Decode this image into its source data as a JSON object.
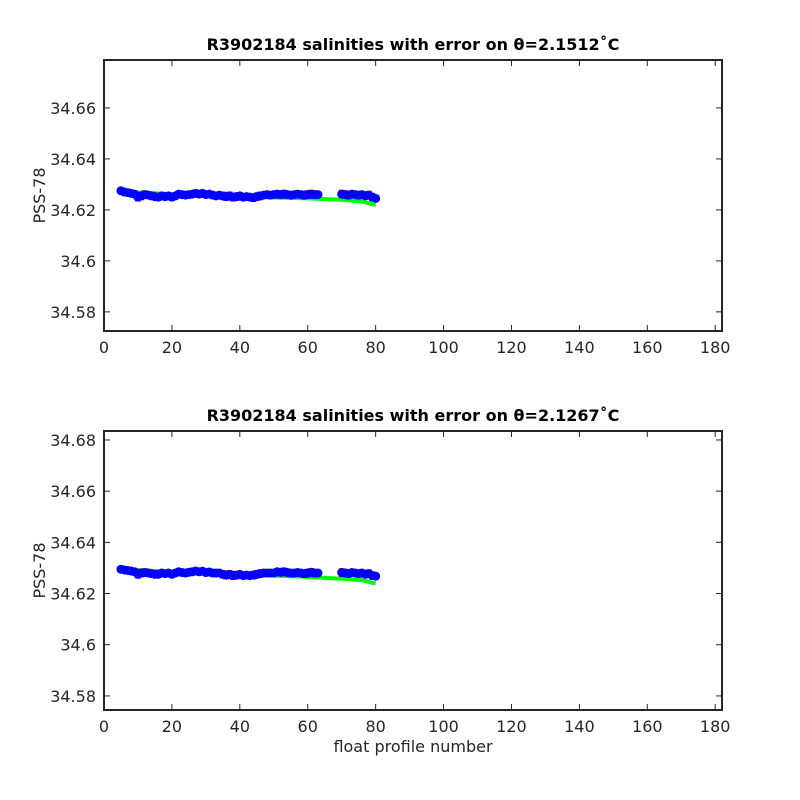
{
  "chart_data": [
    {
      "type": "scatter",
      "title": "R3902184 salinities with error on θ=2.1512˚C",
      "ylabel": "PSS-78",
      "xlim": [
        0,
        182
      ],
      "xticks": [
        0,
        20,
        40,
        60,
        80,
        100,
        120,
        140,
        160,
        180
      ],
      "ylim": [
        34.5725,
        34.6788
      ],
      "yticks": [
        34.58,
        34.6,
        34.62,
        34.64,
        34.66
      ],
      "series": [
        {
          "color": "#00ff00",
          "line": true,
          "x": [
            5,
            20,
            40,
            60,
            70,
            76,
            79,
            80
          ],
          "values": [
            34.6272,
            34.6262,
            34.6252,
            34.6245,
            34.624,
            34.6233,
            34.6222,
            34.622
          ]
        },
        {
          "color": "#0000ff",
          "errcolor": "#ff0000",
          "x": [
            5,
            6,
            7,
            8,
            9,
            10,
            11,
            12,
            13,
            14,
            15,
            16,
            17,
            18,
            19,
            20,
            21,
            22,
            23,
            24,
            25,
            26,
            27,
            28,
            29,
            30,
            31,
            32,
            33,
            34,
            35,
            36,
            37,
            38,
            39,
            40,
            41,
            42,
            43,
            44,
            45,
            46,
            47,
            48,
            49,
            50,
            51,
            52,
            53,
            54,
            55,
            56,
            57,
            58,
            59,
            60,
            61,
            62,
            63,
            70,
            71,
            72,
            73,
            74,
            75,
            76,
            77,
            78,
            79,
            80
          ],
          "values": [
            34.6275,
            34.627,
            34.6268,
            34.6265,
            34.6262,
            34.625,
            34.6255,
            34.626,
            34.6258,
            34.6255,
            34.6252,
            34.625,
            34.6255,
            34.6252,
            34.6255,
            34.625,
            34.6255,
            34.6262,
            34.626,
            34.6258,
            34.626,
            34.6262,
            34.6265,
            34.6262,
            34.6265,
            34.626,
            34.6262,
            34.6258,
            34.6255,
            34.6258,
            34.6255,
            34.6252,
            34.6255,
            34.625,
            34.6252,
            34.6255,
            34.625,
            34.6252,
            34.625,
            34.6248,
            34.6252,
            34.6255,
            34.6258,
            34.626,
            34.6258,
            34.626,
            34.6262,
            34.626,
            34.6262,
            34.626,
            34.6258,
            34.626,
            34.6262,
            34.626,
            34.6258,
            34.626,
            34.6262,
            34.626,
            34.626,
            34.6262,
            34.626,
            34.6258,
            34.6262,
            34.626,
            34.6258,
            34.626,
            34.6255,
            34.6258,
            34.625,
            34.6245
          ],
          "errors": [
            0.0012,
            0.0012,
            0.0012,
            0.0012,
            0.0012,
            0.0015,
            0.0015,
            0.0015,
            0.0012,
            0.0012,
            0.0012,
            0.0012,
            0.0012,
            0.0012,
            0.0012,
            0.0012,
            0.0012,
            0.0012,
            0.0012,
            0.0012,
            0.0012,
            0.0012,
            0.0012,
            0.0012,
            0.0012,
            0.0012,
            0.0012,
            0.0012,
            0.0012,
            0.0012,
            0.0015,
            0.0015,
            0.0015,
            0.0015,
            0.0015,
            0.0012,
            0.0012,
            0.0012,
            0.0012,
            0.0015,
            0.0015,
            0.0015,
            0.0012,
            0.0012,
            0.0012,
            0.0012,
            0.0012,
            0.0015,
            0.0015,
            0.0012,
            0.0012,
            0.0012,
            0.0012,
            0.0012,
            0.0015,
            0.0015,
            0.0015,
            0.0015,
            0.0012,
            0.0015,
            0.0015,
            0.0015,
            0.0012,
            0.0012,
            0.0015,
            0.0012,
            0.0012,
            0.0015,
            0.0015,
            0.0012
          ]
        }
      ]
    },
    {
      "type": "scatter",
      "title": "R3902184 salinities with error on θ=2.1267˚C",
      "ylabel": "PSS-78",
      "xlabel": "float profile number",
      "xlim": [
        0,
        182
      ],
      "xticks": [
        0,
        20,
        40,
        60,
        80,
        100,
        120,
        140,
        160,
        180
      ],
      "ylim": [
        34.5745,
        34.6835
      ],
      "yticks": [
        34.58,
        34.6,
        34.62,
        34.64,
        34.66,
        34.68
      ],
      "series": [
        {
          "color": "#00ff00",
          "line": true,
          "x": [
            5,
            20,
            40,
            60,
            70,
            76,
            79,
            80
          ],
          "values": [
            34.6295,
            34.6285,
            34.6275,
            34.6265,
            34.6258,
            34.6252,
            34.6242,
            34.624
          ]
        },
        {
          "color": "#0000ff",
          "errcolor": "#ff0000",
          "x": [
            5,
            6,
            7,
            8,
            9,
            10,
            11,
            12,
            13,
            14,
            15,
            16,
            17,
            18,
            19,
            20,
            21,
            22,
            23,
            24,
            25,
            26,
            27,
            28,
            29,
            30,
            31,
            32,
            33,
            34,
            35,
            36,
            37,
            38,
            39,
            40,
            41,
            42,
            43,
            44,
            45,
            46,
            47,
            48,
            49,
            50,
            51,
            52,
            53,
            54,
            55,
            56,
            57,
            58,
            59,
            60,
            61,
            62,
            63,
            70,
            71,
            72,
            73,
            74,
            75,
            76,
            77,
            78,
            79,
            80
          ],
          "values": [
            34.6295,
            34.6292,
            34.629,
            34.6288,
            34.6285,
            34.6275,
            34.628,
            34.6282,
            34.628,
            34.6278,
            34.6275,
            34.6275,
            34.628,
            34.6278,
            34.628,
            34.6275,
            34.628,
            34.6285,
            34.6282,
            34.628,
            34.6283,
            34.6285,
            34.6288,
            34.6285,
            34.6287,
            34.6282,
            34.6284,
            34.628,
            34.628,
            34.628,
            34.6275,
            34.6272,
            34.6275,
            34.627,
            34.6272,
            34.6275,
            34.627,
            34.6272,
            34.627,
            34.6272,
            34.6275,
            34.6278,
            34.628,
            34.628,
            34.628,
            34.628,
            34.6285,
            34.6283,
            34.6285,
            34.6282,
            34.628,
            34.628,
            34.6282,
            34.628,
            34.6278,
            34.628,
            34.6283,
            34.628,
            34.628,
            34.6282,
            34.628,
            34.6278,
            34.6282,
            34.628,
            34.6278,
            34.628,
            34.6275,
            34.6278,
            34.627,
            34.6268
          ],
          "errors": [
            0.0012,
            0.0012,
            0.0012,
            0.0012,
            0.0012,
            0.0015,
            0.0015,
            0.0015,
            0.0012,
            0.0012,
            0.0012,
            0.0012,
            0.0012,
            0.0012,
            0.0012,
            0.0012,
            0.0012,
            0.0012,
            0.0012,
            0.0012,
            0.0012,
            0.0012,
            0.0012,
            0.0012,
            0.0012,
            0.0012,
            0.0012,
            0.0012,
            0.0012,
            0.0012,
            0.0015,
            0.0015,
            0.0015,
            0.0015,
            0.0015,
            0.0012,
            0.0012,
            0.0012,
            0.0012,
            0.0015,
            0.0015,
            0.0015,
            0.0012,
            0.0012,
            0.0012,
            0.0012,
            0.0012,
            0.0015,
            0.0015,
            0.0012,
            0.0012,
            0.0012,
            0.0012,
            0.0012,
            0.0015,
            0.0015,
            0.0015,
            0.0015,
            0.0012,
            0.0015,
            0.0015,
            0.0015,
            0.0012,
            0.0012,
            0.0015,
            0.0012,
            0.0012,
            0.0015,
            0.0015,
            0.0012
          ]
        }
      ]
    }
  ]
}
